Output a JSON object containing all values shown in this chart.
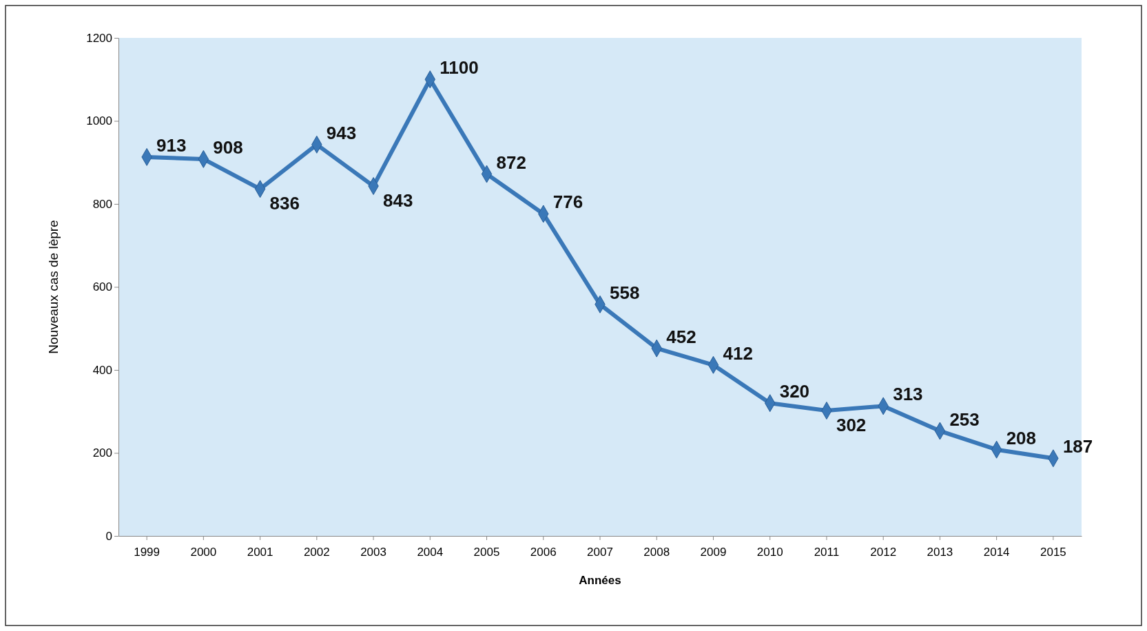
{
  "chart_data": {
    "type": "line",
    "xlabel": "Années",
    "ylabel": "Nouveaux cas de lèpre",
    "categories": [
      "1999",
      "2000",
      "2001",
      "2002",
      "2003",
      "2004",
      "2005",
      "2006",
      "2007",
      "2008",
      "2009",
      "2010",
      "2011",
      "2012",
      "2013",
      "2014",
      "2015"
    ],
    "series": [
      {
        "color": "#3a78b8",
        "values": [
          913,
          908,
          836,
          943,
          843,
          1100,
          872,
          776,
          558,
          452,
          412,
          320,
          302,
          313,
          253,
          208,
          187
        ]
      }
    ],
    "ylim": [
      0,
      1200
    ],
    "yticks": [
      0,
      200,
      400,
      600,
      800,
      1000,
      1200
    ],
    "grid": false,
    "marker": "diamond",
    "line_style": "solid",
    "data_labels": true
  }
}
